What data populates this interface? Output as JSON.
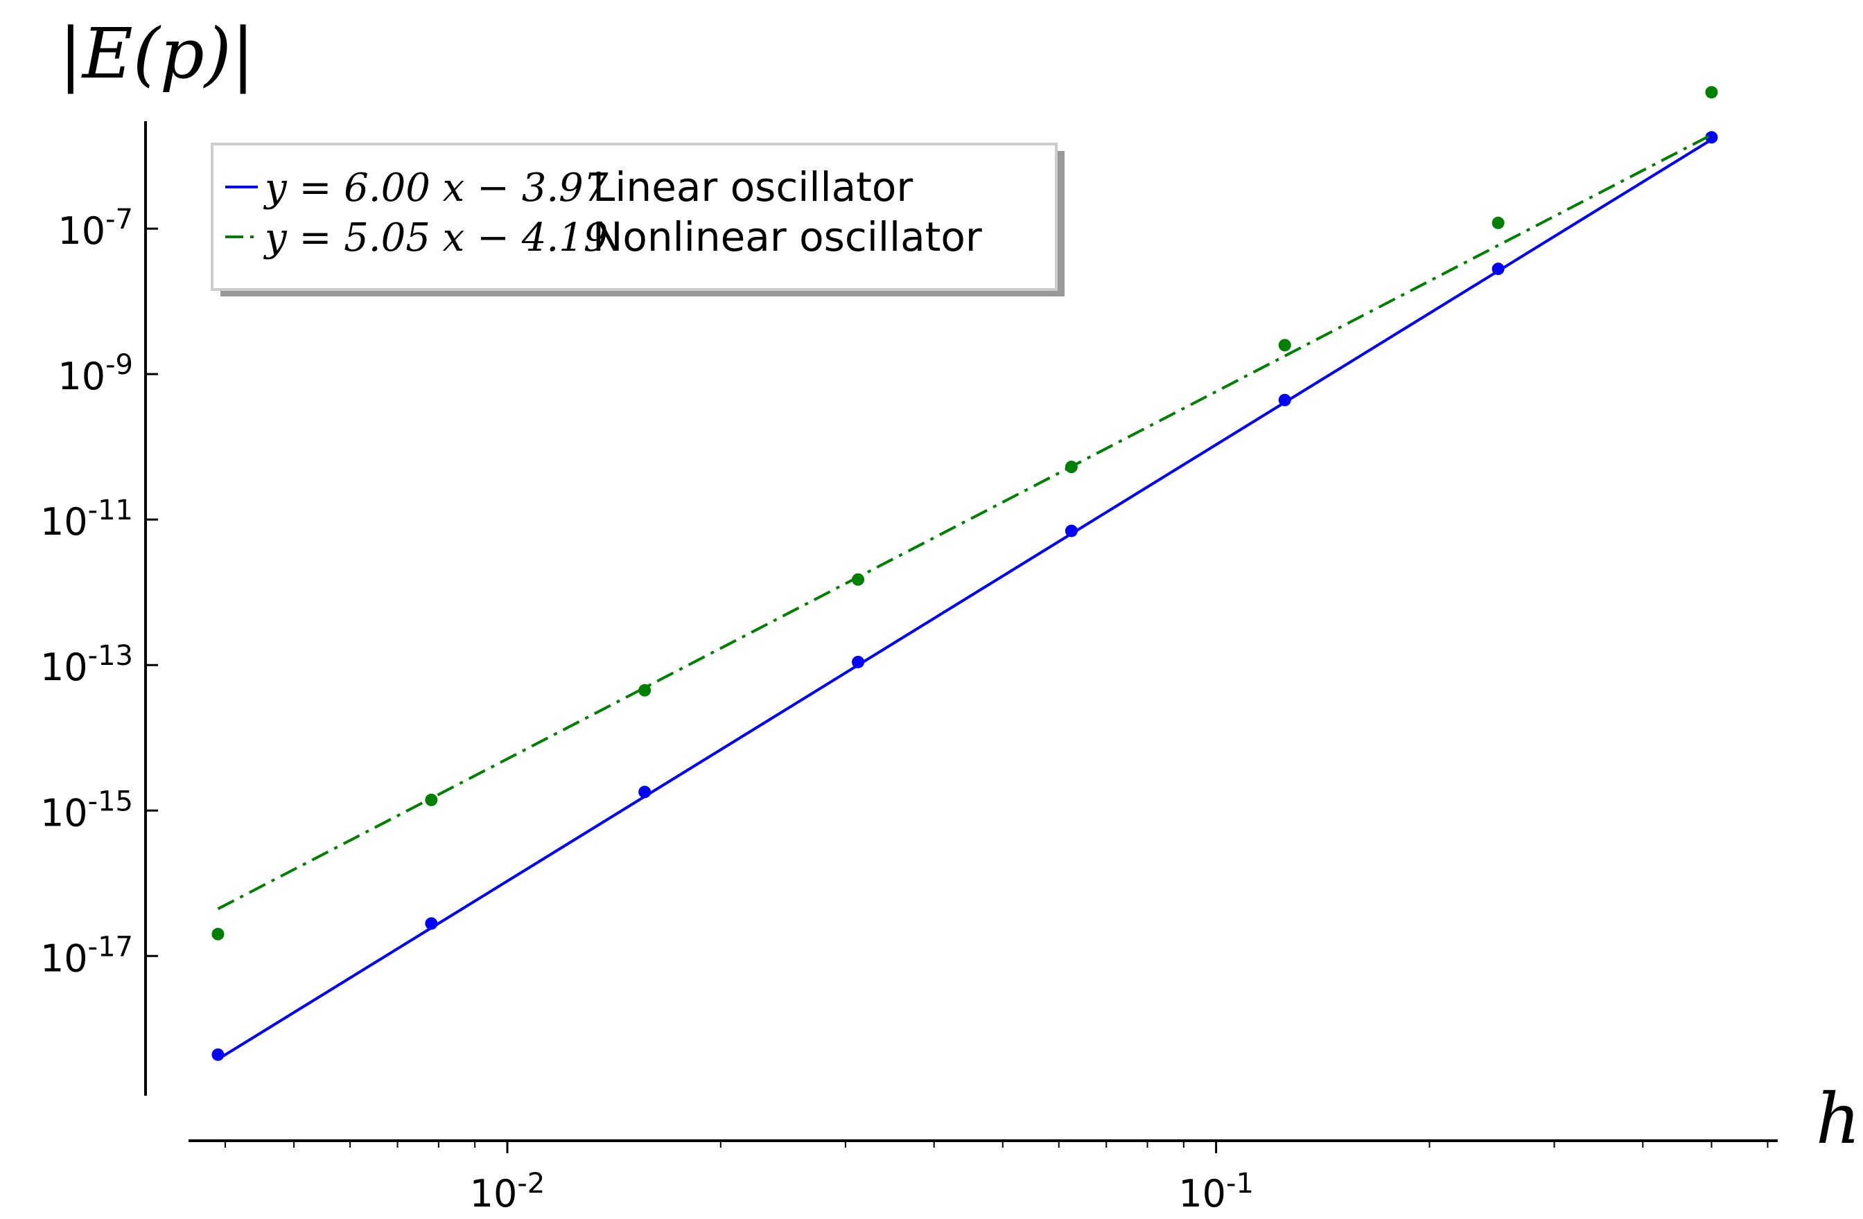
{
  "chart_data": {
    "type": "scatter",
    "xlabel": "h",
    "ylabel": "|E(p)|",
    "xscale": "log",
    "yscale": "log",
    "xlim": [
      0.00355,
      0.62
    ],
    "ylim": [
      1.2e-19,
      3e-06
    ],
    "grid": false,
    "legend_position": "top-left",
    "x_ticks": [
      {
        "value": 0.01,
        "base": "10",
        "exp": "-2"
      },
      {
        "value": 0.1,
        "base": "10",
        "exp": "-1"
      }
    ],
    "y_ticks": [
      {
        "value": 1e-07,
        "base": "10",
        "exp": "-7"
      },
      {
        "value": 1e-09,
        "base": "10",
        "exp": "-9"
      },
      {
        "value": 1e-11,
        "base": "10",
        "exp": "-11"
      },
      {
        "value": 1e-13,
        "base": "10",
        "exp": "-13"
      },
      {
        "value": 1e-15,
        "base": "10",
        "exp": "-15"
      },
      {
        "value": 1e-17,
        "base": "10",
        "exp": "-17"
      }
    ],
    "series": [
      {
        "name": "Linear oscillator",
        "fit_label": "y = 6.00 x − 3.97",
        "color": "#0000ff",
        "line_style": "solid",
        "slope": 6.0,
        "intercept": -3.97,
        "x": [
          0.00390625,
          0.0078125,
          0.015625,
          0.03125,
          0.0625,
          0.125,
          0.25,
          0.5
        ],
        "y": [
          4.4e-19,
          2.8e-17,
          1.8e-15,
          1.1e-13,
          7e-12,
          4.4e-10,
          2.8e-08,
          1.8e-06
        ]
      },
      {
        "name": "Nonlinear oscillator",
        "fit_label": "y = 5.05 x − 4.19",
        "color": "#008000",
        "line_style": "dash-dot",
        "slope": 5.05,
        "intercept": -4.19,
        "x": [
          0.00390625,
          0.0078125,
          0.015625,
          0.03125,
          0.0625,
          0.125,
          0.25,
          0.5
        ],
        "y": [
          2e-17,
          1.4e-15,
          4.5e-14,
          1.5e-12,
          5.3e-11,
          2.5e-09,
          1.2e-07,
          7.5e-06
        ]
      }
    ]
  }
}
